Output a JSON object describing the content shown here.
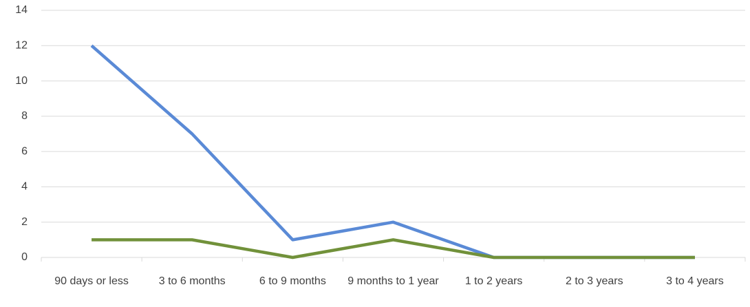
{
  "chart_data": {
    "type": "line",
    "categories": [
      "90 days or less",
      "3 to 6 months",
      "6 to 9 months",
      "9 months to 1 year",
      "1 to 2 years",
      "2 to 3 years",
      "3 to 4 years"
    ],
    "series": [
      {
        "color": "#5a8ad6",
        "values": [
          12,
          7,
          1,
          2,
          0,
          0,
          0
        ]
      },
      {
        "color": "#71913a",
        "values": [
          1,
          1,
          0,
          1,
          0,
          0,
          0
        ]
      }
    ],
    "ylim": [
      0,
      14
    ],
    "yticks": [
      0,
      2,
      4,
      6,
      8,
      10,
      12,
      14
    ],
    "grid": true
  }
}
